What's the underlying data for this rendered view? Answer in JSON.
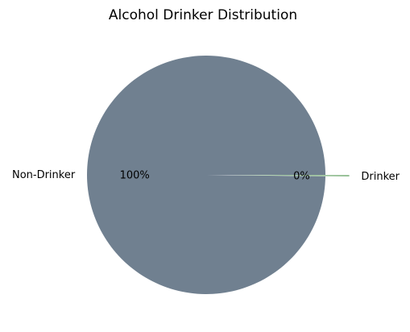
{
  "chart_data": {
    "type": "pie",
    "title": "Alcohol Drinker Distribution",
    "slices": [
      {
        "label": "Non-Drinker",
        "value": 99.8,
        "pct_label": "100%",
        "color": "#708090",
        "explode": 0
      },
      {
        "label": "Drinker",
        "value": 0.2,
        "pct_label": "0%",
        "color": "#8fbc8f",
        "explode": 0.2
      }
    ],
    "start_angle_deg": 0,
    "direction": "counterclockwise"
  }
}
